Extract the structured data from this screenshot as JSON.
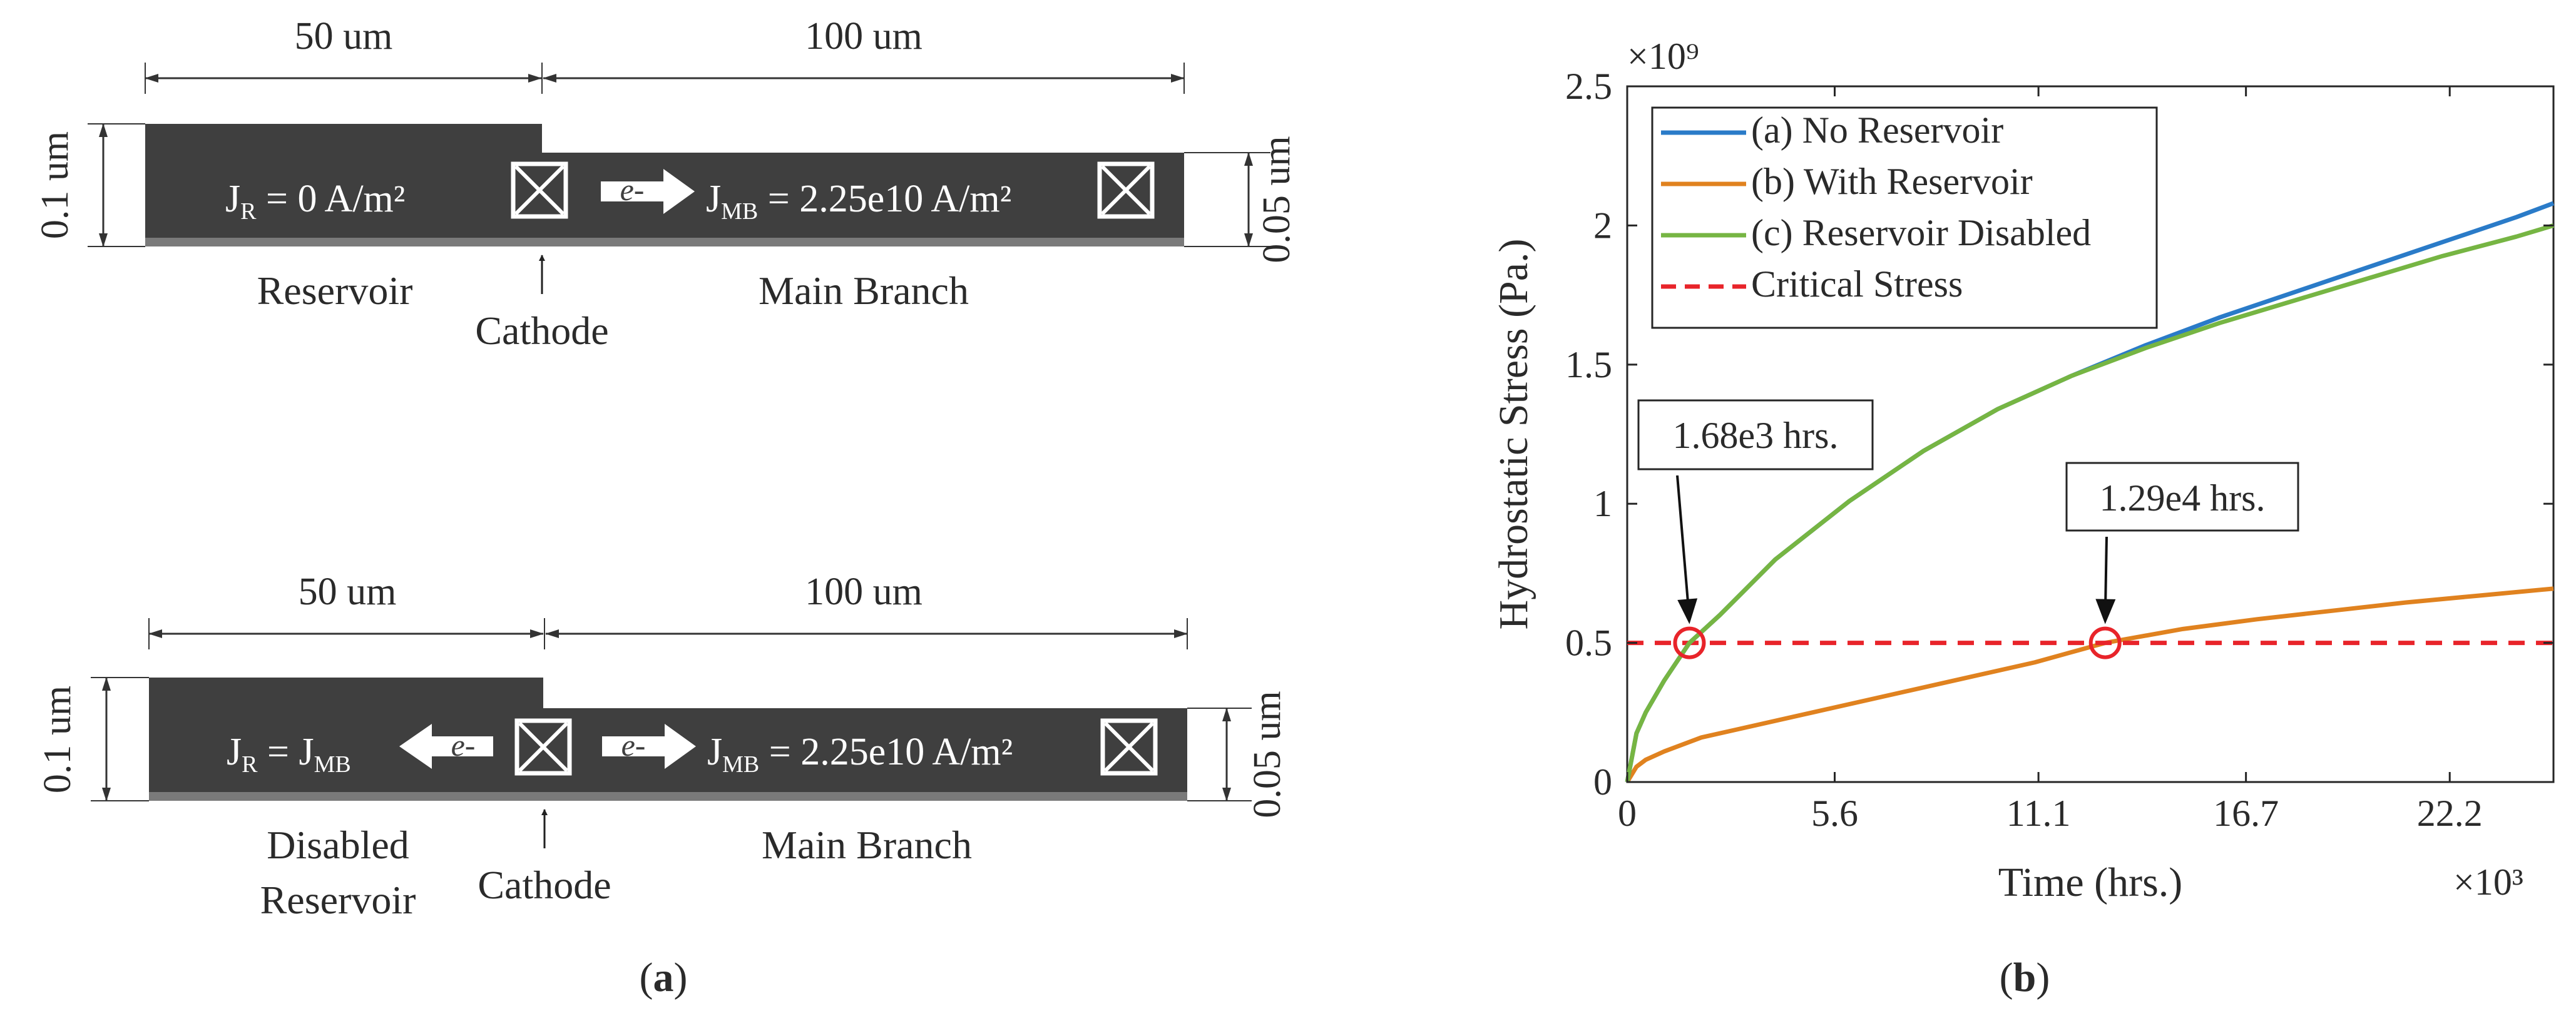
{
  "panel_a": {
    "label_open": "(",
    "label_letter": "a",
    "label_close": ")",
    "top": {
      "len_reservoir": "50 um",
      "len_main": "100 um",
      "height_reservoir": "0.1 um",
      "height_main": "0.05 um",
      "j_reservoir_prefix": "J",
      "j_reservoir_sub": "R",
      "j_reservoir_eq": " = 0 A/m²",
      "electron": "e-",
      "j_main_prefix": "J",
      "j_main_sub": "MB",
      "j_main_eq": " = 2.25e10 A/m²",
      "label_reservoir": "Reservoir",
      "label_cathode": "Cathode",
      "label_main": "Main Branch"
    },
    "bottom": {
      "len_reservoir": "50 um",
      "len_main": "100 um",
      "height_reservoir": "0.1 um",
      "height_main": "0.05 um",
      "j_reservoir_prefix": "J",
      "j_reservoir_sub": "R",
      "j_reservoir_eq_prefix": " = J",
      "j_reservoir_eq_sub": "MB",
      "electron_left": "e-",
      "electron_right": "e-",
      "j_main_prefix": "J",
      "j_main_sub": "MB",
      "j_main_eq": " = 2.25e10 A/m²",
      "label_reservoir_line1": "Disabled",
      "label_reservoir_line2": "Reservoir",
      "label_cathode": "Cathode",
      "label_main": "Main Branch"
    }
  },
  "panel_b": {
    "label_open": "(",
    "label_letter": "b",
    "label_close": ")"
  },
  "chart_data": {
    "type": "line",
    "xlabel": "Time (hrs.)",
    "ylabel": "Hydrostatic Stress (Pa.)",
    "x_multiplier": "×10³",
    "y_multiplier": "×10⁹",
    "xlim": [
      0,
      25000
    ],
    "ylim": [
      0,
      2500000000
    ],
    "xticks": [
      0,
      5600,
      11100,
      16700,
      22200
    ],
    "xtick_labels": [
      "0",
      "5.6",
      "11.1",
      "16.7",
      "22.2"
    ],
    "yticks": [
      0,
      500000000,
      1000000000,
      1500000000,
      2000000000,
      2500000000
    ],
    "ytick_labels": [
      "0",
      "0.5",
      "1",
      "1.5",
      "2",
      "2.5"
    ],
    "grid": false,
    "legend_position": "top-left",
    "series": [
      {
        "name": "(a) No Reservoir",
        "color": "#2a7bc8",
        "style": "solid",
        "x": [
          0,
          250,
          500,
          1000,
          1680,
          2500,
          4000,
          6000,
          8000,
          10000,
          12000,
          14000,
          16000,
          18000,
          20000,
          22000,
          24000,
          25000
        ],
        "y": [
          0,
          175000000,
          250000000,
          365000000,
          500000000,
          600000000,
          800000000,
          1010000000,
          1190000000,
          1340000000,
          1460000000,
          1570000000,
          1670000000,
          1760000000,
          1850000000,
          1940000000,
          2030000000,
          2080000000
        ]
      },
      {
        "name": "(b) With Reservoir",
        "color": "#e0821f",
        "style": "solid",
        "x": [
          0,
          250,
          500,
          1000,
          2000,
          3000,
          5000,
          7000,
          9000,
          11000,
          12900,
          15000,
          17000,
          19000,
          21000,
          23000,
          25000
        ],
        "y": [
          0,
          55000000,
          80000000,
          110000000,
          160000000,
          190000000,
          250000000,
          310000000,
          370000000,
          430000000,
          500000000,
          550000000,
          585000000,
          615000000,
          645000000,
          670000000,
          695000000
        ]
      },
      {
        "name": "(c) Reservoir Disabled",
        "color": "#76b543",
        "style": "solid",
        "x": [
          0,
          250,
          500,
          1000,
          1680,
          2500,
          4000,
          6000,
          8000,
          10000,
          12000,
          14000,
          16000,
          18000,
          20000,
          22000,
          24000,
          25000
        ],
        "y": [
          0,
          175000000,
          250000000,
          365000000,
          500000000,
          600000000,
          800000000,
          1010000000,
          1190000000,
          1340000000,
          1460000000,
          1560000000,
          1650000000,
          1730000000,
          1810000000,
          1890000000,
          1960000000,
          2000000000
        ]
      },
      {
        "name": "Critical Stress",
        "color": "#e8242a",
        "style": "dashed",
        "x": [
          0,
          25000
        ],
        "y": [
          500000000,
          500000000
        ]
      }
    ],
    "annotations": [
      {
        "text": "1.68e3 hrs.",
        "x": 1680,
        "y": 500000000
      },
      {
        "text": "1.29e4 hrs.",
        "x": 12900,
        "y": 500000000
      }
    ],
    "markers_color": "#e8242a"
  }
}
